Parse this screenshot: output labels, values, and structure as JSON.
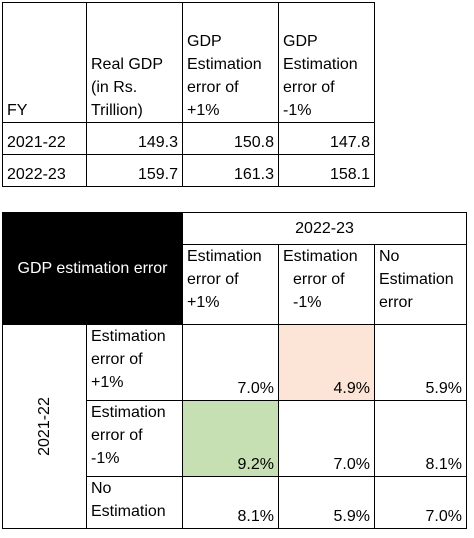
{
  "table1": {
    "headers": [
      "FY",
      "Real GDP (in Rs. Trillion)",
      "GDP Estimation error of +1%",
      "GDP Estimation error of -1%"
    ],
    "header_lines": [
      [
        "FY"
      ],
      [
        "Real GDP",
        "(in Rs.",
        "Trillion)"
      ],
      [
        "GDP",
        "Estimation",
        "error of",
        "+1%"
      ],
      [
        "GDP",
        "Estimation",
        "error of",
        "-1%"
      ]
    ],
    "rows": [
      {
        "fy": "2021-22",
        "real_gdp": "149.3",
        "plus1": "150.8",
        "minus1": "147.8"
      },
      {
        "fy": "2022-23",
        "real_gdp": "159.7",
        "plus1": "161.3",
        "minus1": "158.1"
      }
    ]
  },
  "table2": {
    "corner_label": "GDP estimation error",
    "col_group": "2022-23",
    "col_headers": [
      [
        "Estimation",
        "error of",
        "+1%"
      ],
      [
        "Estimation",
        "error of",
        "-1%"
      ],
      [
        "No",
        "Estimation",
        "error"
      ]
    ],
    "row_group": "2021-22",
    "rows": [
      {
        "label": [
          "Estimation",
          "error of",
          "+1%"
        ],
        "values": [
          "7.0%",
          "4.9%",
          "5.9%"
        ]
      },
      {
        "label": [
          "Estimation",
          "error of",
          "-1%"
        ],
        "values": [
          "9.2%",
          "7.0%",
          "8.1%"
        ]
      },
      {
        "label": [
          "No",
          "Estimation"
        ],
        "values": [
          "8.1%",
          "5.9%",
          "7.0%"
        ]
      }
    ],
    "highlights": {
      "max_color": "#c6e0b4",
      "min_color": "#fce4d6"
    }
  }
}
